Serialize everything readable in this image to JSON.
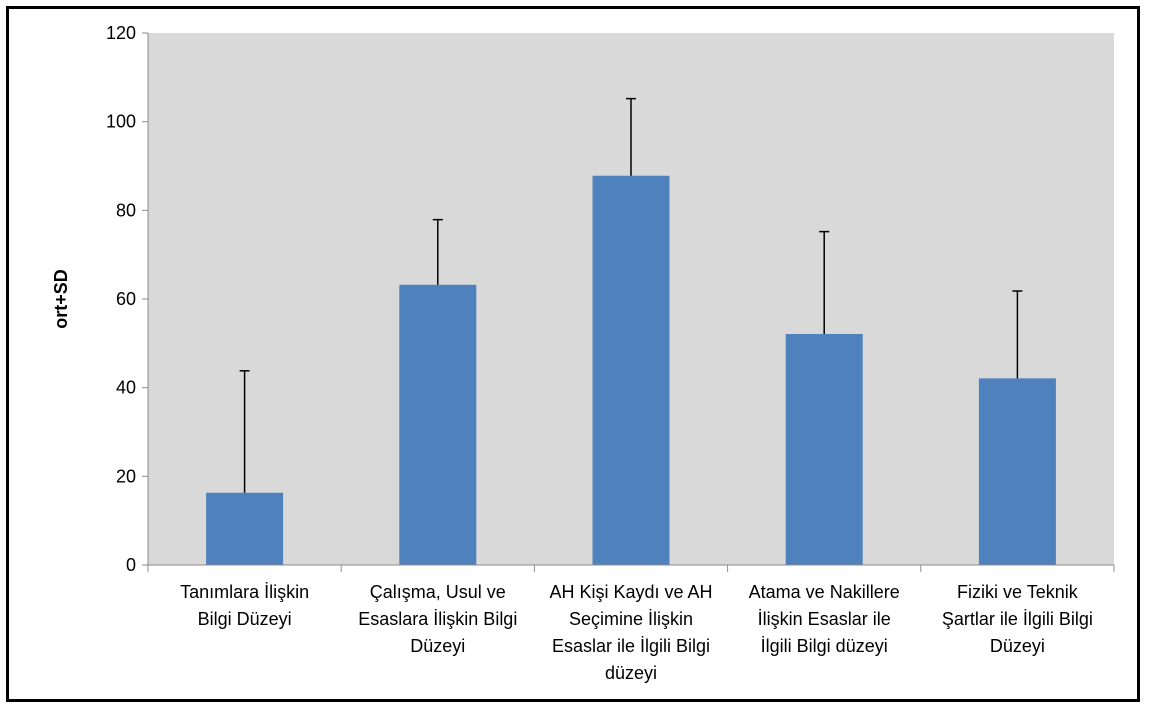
{
  "chart_data": {
    "type": "bar",
    "title": "",
    "xlabel": "",
    "ylabel": "ort+SD",
    "ylim": [
      0,
      120
    ],
    "yticks": [
      0,
      20,
      40,
      60,
      80,
      100,
      120
    ],
    "grid": false,
    "legend": "none",
    "categories": [
      [
        "Tanımlara İlişkin",
        "Bilgi Düzeyi"
      ],
      [
        "Çalışma, Usul ve",
        "Esaslara İlişkin Bilgi",
        "Düzeyi"
      ],
      [
        "AH Kişi Kaydı ve AH",
        "Seçimine İlişkin",
        "Esaslar ile İlgili Bilgi",
        "düzeyi"
      ],
      [
        "Atama ve Nakillere",
        "İlişkin Esaslar ile",
        "İlgili Bilgi düzeyi"
      ],
      [
        "Fiziki ve Teknik",
        "Şartlar ile İlgili Bilgi",
        "Düzeyi"
      ]
    ],
    "values": [
      16.3,
      63.2,
      87.8,
      52.1,
      42.1
    ],
    "error_upper": [
      27.5,
      14.7,
      17.4,
      23.1,
      19.7
    ],
    "colors": {
      "bar": "#4f81bd",
      "plot_background": "#d9d9d9",
      "axis": "#8c8c8c",
      "error_bar": "#000000"
    }
  }
}
